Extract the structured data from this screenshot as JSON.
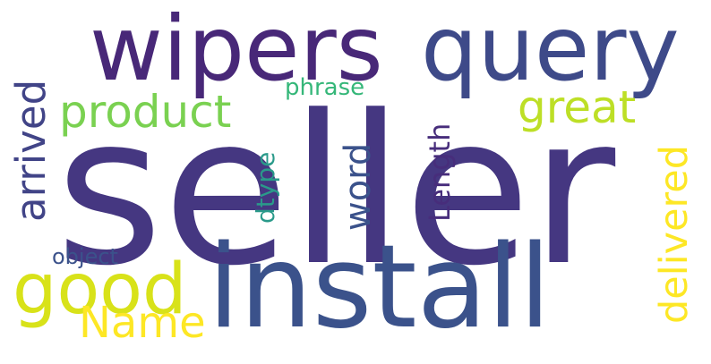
{
  "words": [
    {
      "id": "seller",
      "text": "seller",
      "color": "#453781"
    },
    {
      "id": "install",
      "text": "install",
      "color": "#3b528b"
    },
    {
      "id": "wipers",
      "text": "wipers",
      "color": "#482878"
    },
    {
      "id": "query",
      "text": "query",
      "color": "#3e4a89"
    },
    {
      "id": "good",
      "text": "good",
      "color": "#d8e219"
    },
    {
      "id": "product",
      "text": "product",
      "color": "#7ad151"
    },
    {
      "id": "great",
      "text": "great",
      "color": "#bddf26"
    },
    {
      "id": "name",
      "text": "Name",
      "color": "#fde725"
    },
    {
      "id": "arrived",
      "text": "arrived",
      "color": "#414487"
    },
    {
      "id": "delivered",
      "text": "delivered",
      "color": "#fde725"
    },
    {
      "id": "word",
      "text": "word",
      "color": "#3b528b"
    },
    {
      "id": "length",
      "text": "Length",
      "color": "#472d7b"
    },
    {
      "id": "dtype",
      "text": "dtype",
      "color": "#2a9a8a"
    },
    {
      "id": "phrase",
      "text": "phrase",
      "color": "#35b779"
    },
    {
      "id": "object",
      "text": "object",
      "color": "#3b528b"
    }
  ]
}
